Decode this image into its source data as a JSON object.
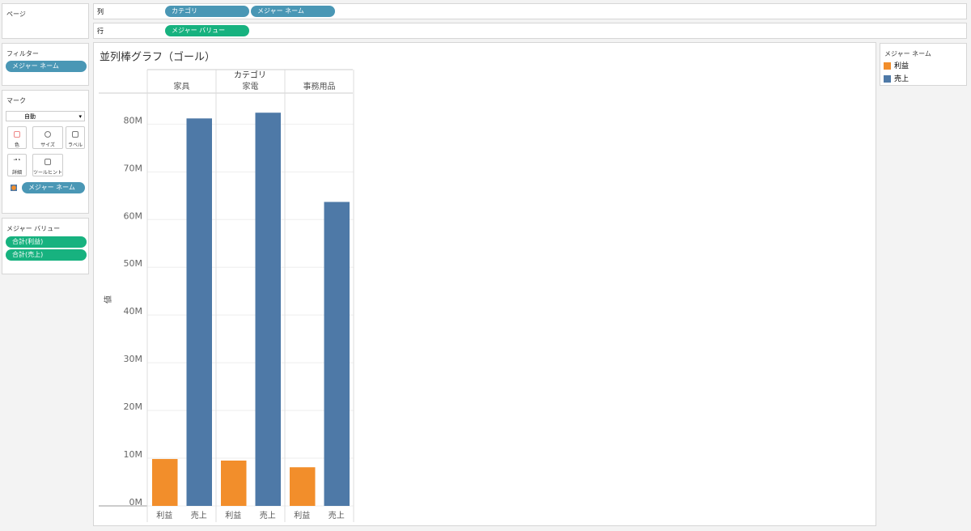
{
  "pages_title": "ページ",
  "columns_shelf": {
    "label": "列",
    "pills": [
      "カテゴリ",
      "メジャー ネーム"
    ]
  },
  "rows_shelf": {
    "label": "行",
    "pills": [
      "メジャー バリュー"
    ]
  },
  "filters": {
    "title": "フィルター",
    "pills": [
      "メジャー ネーム"
    ]
  },
  "marks": {
    "title": "マーク",
    "mark_type": "自動",
    "buttons": [
      "色",
      "サイズ",
      "ラベル",
      "詳細",
      "ツールヒント"
    ],
    "pills": [
      "メジャー ネーム"
    ]
  },
  "measure_values": {
    "title": "メジャー バリュー",
    "pills": [
      "合計(利益)",
      "合計(売上)"
    ]
  },
  "chart_data": {
    "type": "bar",
    "title": "並列棒グラフ（ゴール）",
    "x_label": "カテゴリ",
    "y_label": "値",
    "categories": [
      "家具",
      "家電",
      "事務用品"
    ],
    "series": [
      {
        "name": "利益",
        "color": "#f28e2b",
        "values": [
          9830000,
          9500000,
          8100000
        ]
      },
      {
        "name": "売上",
        "color": "#4e79a7",
        "values": [
          81200000,
          82400000,
          63700000
        ]
      }
    ],
    "ylim": [
      0,
      86000000
    ],
    "yticks": [
      {
        "value": 0,
        "label": "0M"
      },
      {
        "value": 10000000,
        "label": "10M"
      },
      {
        "value": 20000000,
        "label": "20M"
      },
      {
        "value": 30000000,
        "label": "30M"
      },
      {
        "value": 40000000,
        "label": "40M"
      },
      {
        "value": 50000000,
        "label": "50M"
      },
      {
        "value": 60000000,
        "label": "60M"
      },
      {
        "value": 70000000,
        "label": "70M"
      },
      {
        "value": 80000000,
        "label": "80M"
      }
    ],
    "grid": true,
    "legend_title": "メジャー ネーム",
    "legend": "right"
  }
}
